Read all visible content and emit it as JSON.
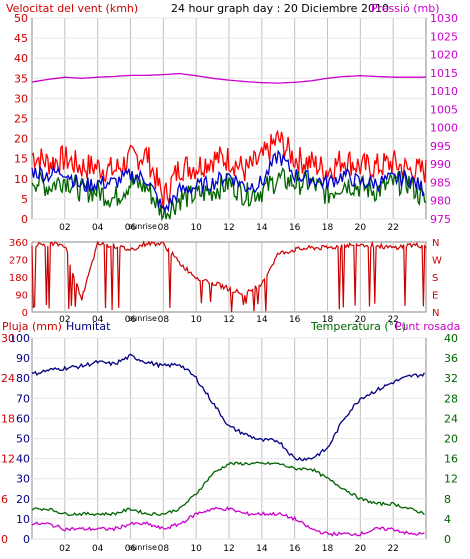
{
  "header": {
    "title": "24 hour graph day : 20 Diciembre 2010"
  },
  "colors": {
    "wind_avg": "#0000cc",
    "wind_gust": "#ff0000",
    "wind_dir": "#cc0000",
    "humidity": "#000080",
    "temperature": "#006400",
    "dew_point": "#cc00cc",
    "pressure": "#cc00cc",
    "rain": "#ff0000",
    "grid": "#c0c0c0",
    "daylight": "#ffffff"
  },
  "chart_data": [
    {
      "type": "line",
      "title": "Velocitat del vent (kmh)",
      "ylabel_right": "Pressió (mb)",
      "x_ticks": [
        "02",
        "04",
        "06",
        "08",
        "10",
        "12",
        "14",
        "16",
        "18",
        "20",
        "22"
      ],
      "x_note": "sunrise",
      "ylim": [
        0,
        50
      ],
      "y_ticks": [
        0,
        5,
        10,
        15,
        20,
        25,
        30,
        35,
        40,
        45,
        50
      ],
      "y2lim": [
        975,
        1030
      ],
      "y2_ticks": [
        975,
        980,
        985,
        990,
        995,
        1000,
        1005,
        1010,
        1015,
        1020,
        1025,
        1030
      ],
      "hours": [
        0,
        1,
        2,
        3,
        4,
        5,
        6,
        7,
        8,
        9,
        10,
        11,
        12,
        13,
        14,
        15,
        16,
        17,
        18,
        19,
        20,
        21,
        22,
        23,
        24
      ],
      "series": [
        {
          "key": "gust",
          "axis": "left",
          "values": [
            16,
            14,
            15,
            13,
            13,
            12,
            15,
            16,
            5,
            13,
            13,
            15,
            15,
            12,
            15,
            20,
            15,
            14,
            12,
            15,
            13,
            13,
            14,
            12,
            12
          ]
        },
        {
          "key": "avg",
          "axis": "left",
          "values": [
            12,
            11,
            12,
            8,
            9,
            9,
            11,
            10,
            2,
            7,
            8,
            9,
            11,
            8,
            9,
            16,
            11,
            10,
            9,
            11,
            9,
            9,
            10,
            10,
            7
          ]
        },
        {
          "key": "direction_speed",
          "axis": "left",
          "values": [
            10,
            8,
            10,
            7,
            7,
            5,
            9,
            8,
            1,
            5,
            6,
            7,
            9,
            6,
            7,
            10,
            9,
            9,
            6,
            9,
            8,
            7,
            9,
            9,
            4
          ]
        },
        {
          "key": "pressure",
          "axis": "right",
          "values": [
            1012.5,
            1013.2,
            1013.8,
            1013.5,
            1013.8,
            1014.0,
            1014.3,
            1014.3,
            1014.5,
            1014.8,
            1014.2,
            1013.5,
            1013.0,
            1012.6,
            1012.3,
            1012.2,
            1012.4,
            1012.8,
            1013.5,
            1014.0,
            1014.2,
            1014.0,
            1013.8,
            1013.8,
            1013.8
          ]
        }
      ]
    },
    {
      "type": "scatter",
      "left_ticks": [
        "360",
        "270",
        "180",
        "90",
        "0"
      ],
      "right_ticks": [
        "N",
        "W",
        "S",
        "E",
        "N"
      ],
      "ylim": [
        0,
        360
      ],
      "x_ticks": [
        "02",
        "04",
        "06",
        "08",
        "10",
        "12",
        "14",
        "16",
        "18",
        "20",
        "22"
      ],
      "x_note": "sunrise",
      "hours": [
        0,
        1,
        2,
        3,
        4,
        5,
        6,
        7,
        8,
        9,
        10,
        11,
        12,
        13,
        14,
        15,
        16,
        17,
        18,
        19,
        20,
        21,
        22,
        23,
        24
      ],
      "values": [
        340,
        350,
        345,
        60,
        350,
        340,
        320,
        355,
        350,
        250,
        180,
        150,
        120,
        90,
        150,
        300,
        320,
        330,
        330,
        340,
        350,
        340,
        330,
        345,
        340
      ]
    },
    {
      "type": "line",
      "title_left": "Pluja (mm)",
      "title_mid": "Humitat",
      "title_right_a": "Temperatura (°C)",
      "title_right_b": "Punt rosada",
      "ylim_humidity": [
        0,
        100
      ],
      "humidity_ticks": [
        0,
        10,
        20,
        30,
        40,
        50,
        60,
        70,
        80,
        90,
        100
      ],
      "ylim_rain": [
        0,
        30
      ],
      "rain_ticks": [
        0,
        6,
        12,
        18,
        24,
        30
      ],
      "y2lim": [
        0,
        40
      ],
      "y2_ticks": [
        0,
        4,
        8,
        12,
        16,
        20,
        24,
        28,
        32,
        36,
        40
      ],
      "x_ticks": [
        "02",
        "04",
        "06",
        "08",
        "10",
        "12",
        "14",
        "16",
        "18",
        "20",
        "22"
      ],
      "x_note": "sunrise",
      "hours": [
        0,
        1,
        2,
        3,
        4,
        5,
        6,
        7,
        8,
        9,
        10,
        11,
        12,
        13,
        14,
        15,
        16,
        17,
        18,
        19,
        20,
        21,
        22,
        23,
        24
      ],
      "series": [
        {
          "key": "humidity",
          "axis": "left_humidity",
          "values": [
            82,
            84,
            85,
            86,
            88,
            87,
            91,
            88,
            86,
            87,
            80,
            68,
            56,
            52,
            49,
            49,
            40,
            40,
            45,
            60,
            70,
            74,
            78,
            81,
            82
          ]
        },
        {
          "key": "temperature",
          "axis": "right",
          "values": [
            6,
            6,
            5,
            5,
            5,
            5,
            6,
            5,
            5,
            6,
            9,
            13,
            15,
            15,
            15,
            15,
            14,
            14,
            12,
            10,
            8,
            7,
            7,
            6,
            5
          ]
        },
        {
          "key": "dew_point",
          "axis": "right",
          "values": [
            3,
            3,
            2,
            2,
            2,
            2,
            3,
            3,
            2,
            3,
            5,
            6,
            6,
            5,
            5,
            5,
            4,
            2,
            1,
            1,
            1,
            2,
            2,
            1,
            1
          ]
        }
      ]
    }
  ]
}
